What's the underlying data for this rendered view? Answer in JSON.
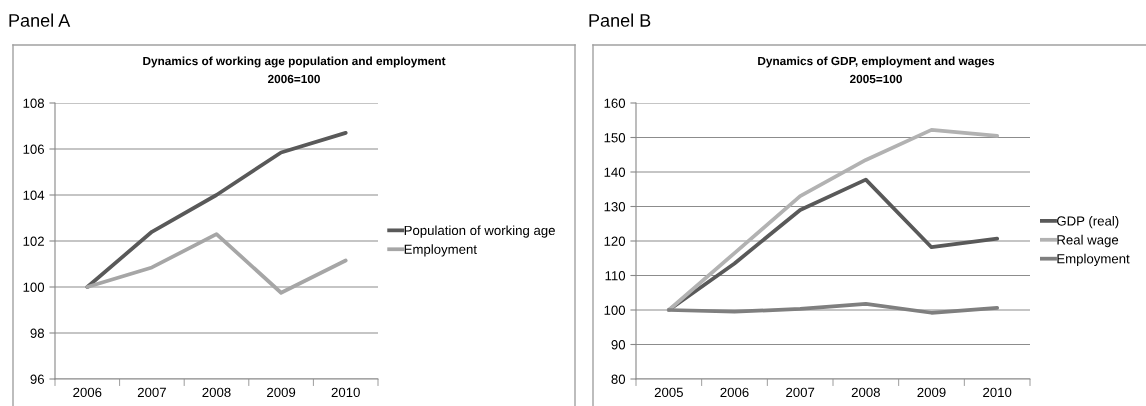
{
  "chart_data": [
    {
      "type": "line",
      "title": "Dynamics of working age population and employment",
      "subtitle": "2006=100",
      "annotations": [
        "Panel A"
      ],
      "categories": [
        "2006",
        "2007",
        "2008",
        "2009",
        "2010"
      ],
      "series": [
        {
          "name": "Population of working age",
          "color": "#595959",
          "values": [
            100,
            102.4,
            104.0,
            105.85,
            106.7
          ]
        },
        {
          "name": "Employment",
          "color": "#a6a6a6",
          "values": [
            100,
            100.85,
            102.3,
            99.75,
            101.15
          ]
        }
      ],
      "ylim": [
        96,
        108
      ],
      "yticks": [
        96,
        98,
        100,
        102,
        104,
        106,
        108
      ],
      "grid": "y",
      "legend": "right"
    },
    {
      "type": "line",
      "title": "Dynamics of GDP, employment and wages",
      "subtitle": "2005=100",
      "annotations": [
        "Panel B"
      ],
      "categories": [
        "2005",
        "2006",
        "2007",
        "2008",
        "2009",
        "2010"
      ],
      "series": [
        {
          "name": "GDP (real)",
          "color": "#595959",
          "values": [
            100,
            113.5,
            129,
            137.8,
            118.2,
            120.7
          ]
        },
        {
          "name": "Real wage",
          "color": "#b2b2b2",
          "values": [
            100,
            116.5,
            133,
            143.5,
            152.2,
            150.5
          ]
        },
        {
          "name": "Employment",
          "color": "#7f7f7f",
          "values": [
            100,
            99.5,
            100.3,
            101.8,
            99.2,
            100.6
          ]
        }
      ],
      "ylim": [
        80,
        160
      ],
      "yticks": [
        80,
        90,
        100,
        110,
        120,
        130,
        140,
        150,
        160
      ],
      "grid": "y",
      "legend": "right"
    }
  ]
}
